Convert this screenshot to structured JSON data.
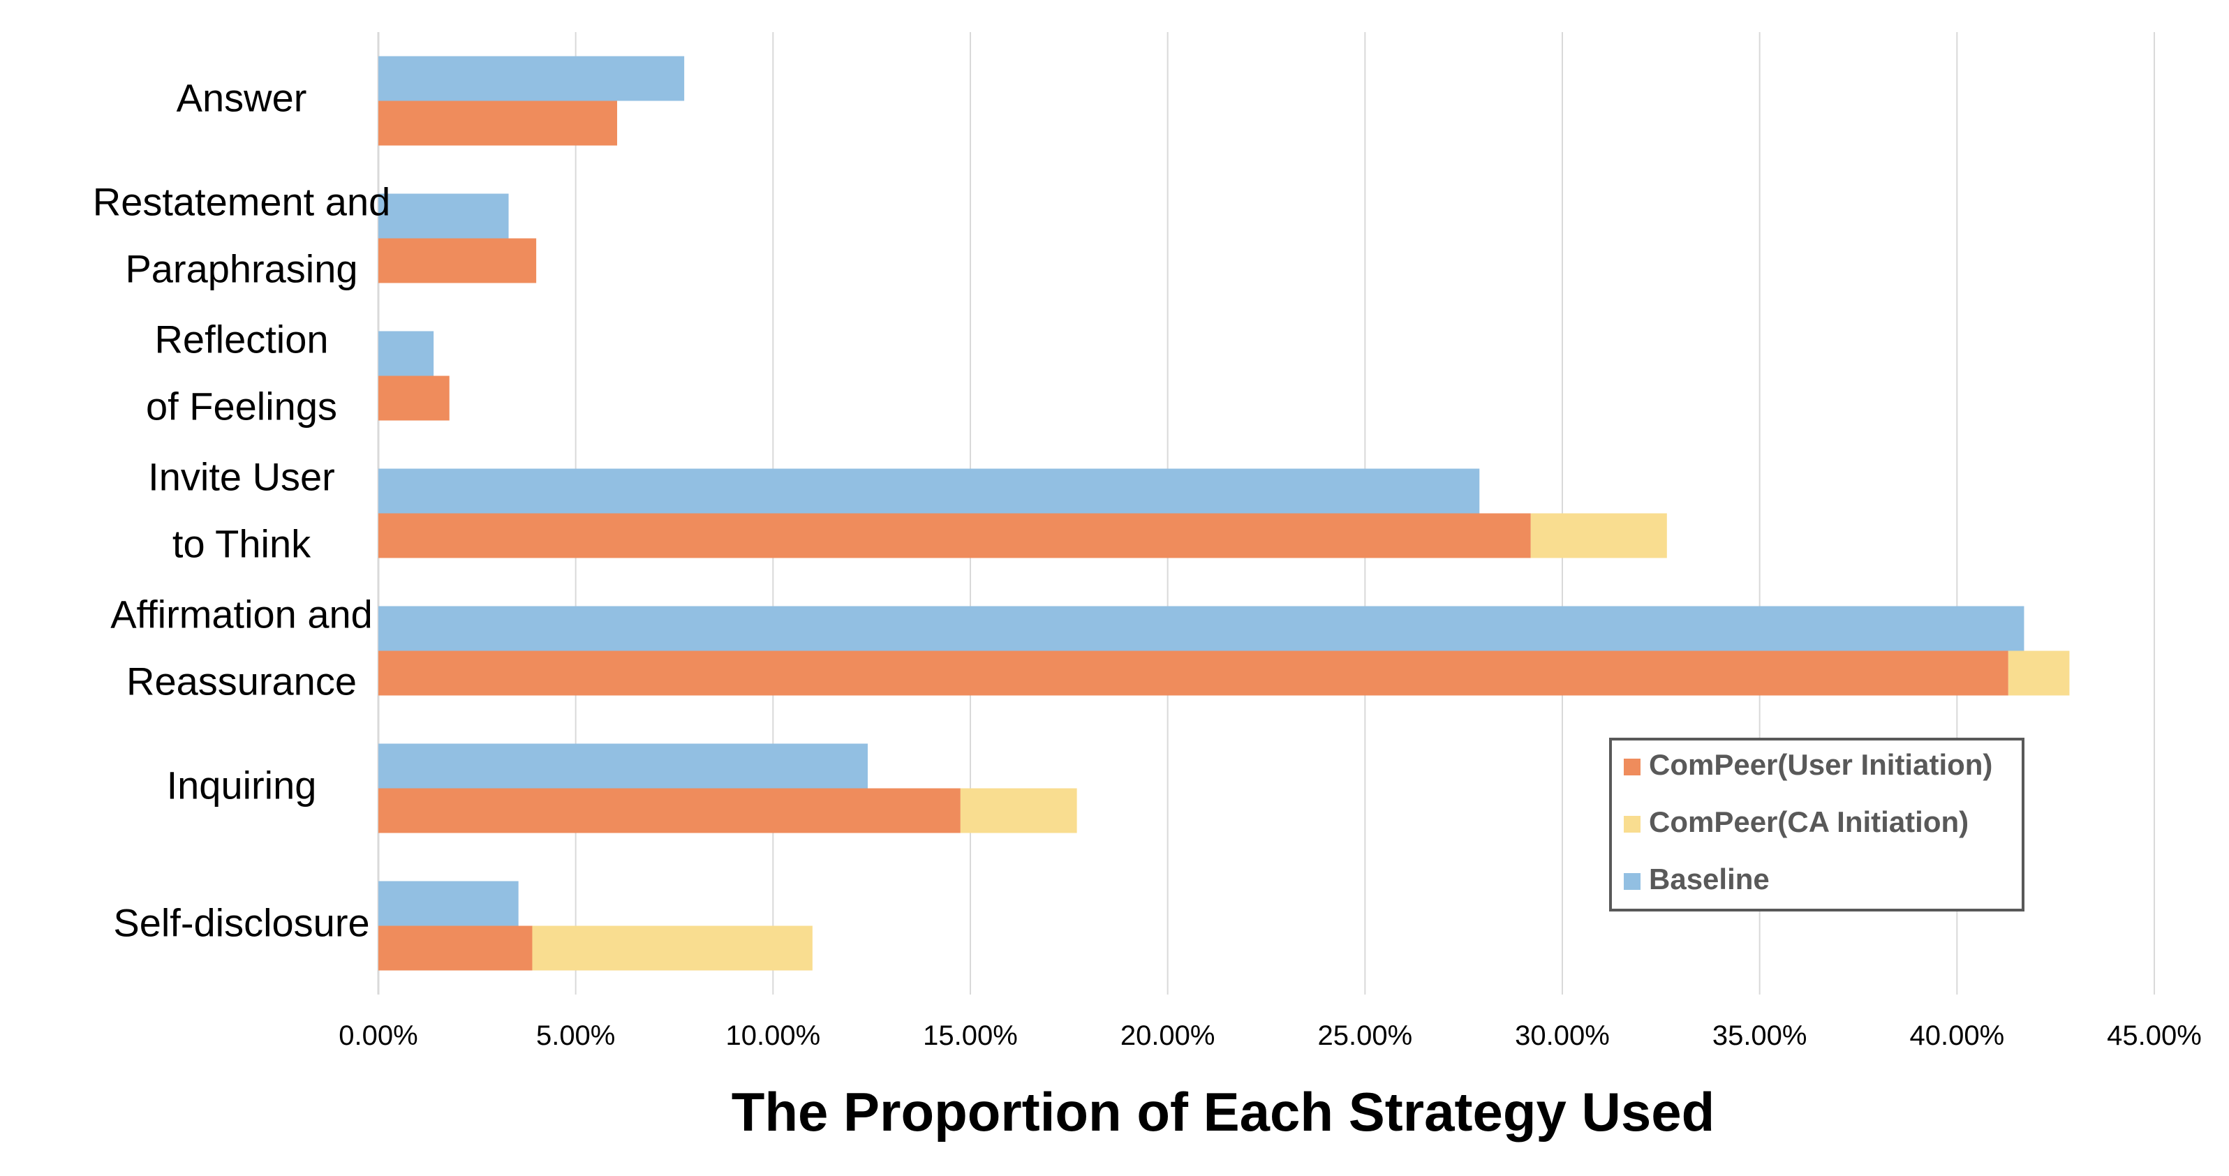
{
  "chart_data": {
    "type": "bar",
    "orientation": "horizontal",
    "stacked_series": [
      "ComPeer(User Initiation)",
      "ComPeer(CA Initiation)"
    ],
    "categories": [
      [
        "Answer"
      ],
      [
        "Restatement and",
        "Paraphrasing"
      ],
      [
        "Reflection",
        "of Feelings"
      ],
      [
        "Invite User",
        "to Think"
      ],
      [
        "Affirmation and",
        "Reassurance"
      ],
      [
        "Inquiring"
      ],
      [
        "Self-disclosure"
      ]
    ],
    "series": [
      {
        "name": "Baseline",
        "color": "#92BFE2",
        "values": [
          0.0775,
          0.033,
          0.014,
          0.279,
          0.417,
          0.124,
          0.0355
        ]
      },
      {
        "name": "ComPeer(User Initiation)",
        "color": "#EF8C5C",
        "values": [
          0.0605,
          0.04,
          0.018,
          0.292,
          0.413,
          0.1475,
          0.039
        ]
      },
      {
        "name": "ComPeer(CA Initiation)",
        "color": "#F9DD90",
        "values": [
          0.0,
          0.0,
          0.0,
          0.0345,
          0.0155,
          0.0295,
          0.071
        ]
      }
    ],
    "xlim": [
      0,
      0.45
    ],
    "xticks": [
      0,
      0.05,
      0.1,
      0.15,
      0.2,
      0.25,
      0.3,
      0.35,
      0.4,
      0.45
    ],
    "xtick_labels": [
      "0.00%",
      "5.00%",
      "10.00%",
      "15.00%",
      "20.00%",
      "25.00%",
      "30.00%",
      "35.00%",
      "40.00%",
      "45.00%"
    ],
    "xlabel": "The Proportion of Each Strategy Used",
    "ylabel": "",
    "title": "",
    "grid": "vertical",
    "legend": {
      "position": "right",
      "entries": [
        {
          "label": "ComPeer(User Initiation)",
          "color": "#EF8C5C"
        },
        {
          "label": "ComPeer(CA Initiation)",
          "color": "#F9DD90"
        },
        {
          "label": "Baseline",
          "color": "#92BFE2"
        }
      ]
    }
  }
}
